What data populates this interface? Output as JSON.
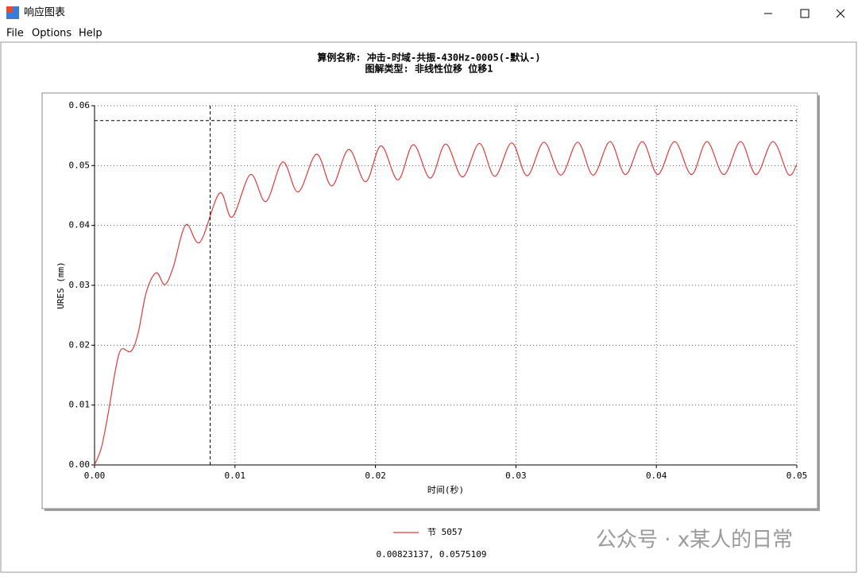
{
  "window": {
    "title": "响应图表",
    "menu": [
      "File",
      "Options",
      "Help"
    ]
  },
  "chart_data": {
    "type": "line",
    "title": "算例名称: 冲击-时域-共振-430Hz-0005(-默认-)",
    "subtitle": "图解类型: 非线性位移 位移1",
    "x_label": "时间(秒)",
    "y_label": "URES (mm)",
    "x": [
      0,
      0.0005,
      0.001,
      0.0015,
      0.0019,
      0.0026,
      0.0031,
      0.0037,
      0.0044,
      0.005,
      0.0056,
      0.0065,
      0.0075,
      0.0089,
      0.0098,
      0.0111,
      0.0122,
      0.0134,
      0.0145,
      0.0158,
      0.0169,
      0.0181,
      0.0193,
      0.0204,
      0.0216,
      0.0227,
      0.0239,
      0.025,
      0.0262,
      0.0274,
      0.0285,
      0.0297,
      0.0308,
      0.032,
      0.0332,
      0.0344,
      0.0355,
      0.0367,
      0.0378,
      0.039,
      0.0401,
      0.0413,
      0.0425,
      0.0436,
      0.0448,
      0.046,
      0.0471,
      0.0483,
      0.0494,
      0.05
    ],
    "series": [
      {
        "name": "节 5057",
        "color": "#e03a3a",
        "values": [
          0,
          0.003,
          0.009,
          0.016,
          0.0193,
          0.019,
          0.022,
          0.029,
          0.0321,
          0.0301,
          0.033,
          0.0401,
          0.0372,
          0.0454,
          0.0414,
          0.0485,
          0.044,
          0.0506,
          0.0456,
          0.0519,
          0.0466,
          0.0527,
          0.0473,
          0.0533,
          0.0476,
          0.0535,
          0.0479,
          0.0536,
          0.0481,
          0.0537,
          0.0482,
          0.0538,
          0.0483,
          0.0539,
          0.0484,
          0.0539,
          0.0484,
          0.054,
          0.0485,
          0.054,
          0.0485,
          0.054,
          0.0485,
          0.054,
          0.0485,
          0.054,
          0.0485,
          0.054,
          0.0485,
          0.0502
        ]
      }
    ],
    "xlim": [
      0,
      0.05
    ],
    "xticks": [
      {
        "value": 0,
        "label": "0.00"
      },
      {
        "value": 0.01,
        "label": "0.01"
      },
      {
        "value": 0.02,
        "label": "0.02"
      },
      {
        "value": 0.03,
        "label": "0.03"
      },
      {
        "value": 0.04,
        "label": "0.04"
      },
      {
        "value": 0.05,
        "label": "0.05"
      }
    ],
    "ylim": [
      0,
      0.06
    ],
    "yticks": [
      {
        "value": 0,
        "label": "0.00"
      },
      {
        "value": 0.01,
        "label": "0.01"
      },
      {
        "value": 0.02,
        "label": "0.02"
      },
      {
        "value": 0.03,
        "label": "0.03"
      },
      {
        "value": 0.04,
        "label": "0.04"
      },
      {
        "value": 0.05,
        "label": "0.05"
      },
      {
        "value": 0.06,
        "label": "0.06"
      }
    ],
    "grid": true,
    "cursor": {
      "x": 0.00823137,
      "y": 0.0575109,
      "label": "0.00823137, 0.0575109"
    }
  },
  "watermark": "公众号 · x某人的日常"
}
